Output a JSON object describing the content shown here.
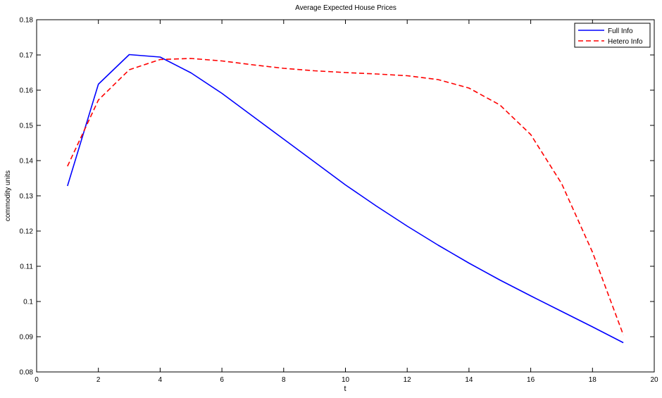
{
  "chart_data": {
    "type": "line",
    "title": "Average Expected House Prices",
    "xlabel": "t",
    "ylabel": "commodity units",
    "xlim": [
      0,
      20
    ],
    "ylim": [
      0.08,
      0.18
    ],
    "xticks": [
      0,
      2,
      4,
      6,
      8,
      10,
      12,
      14,
      16,
      18,
      20
    ],
    "yticks": [
      0.08,
      0.09,
      0.1,
      0.11,
      0.12,
      0.13,
      0.14,
      0.15,
      0.16,
      0.17,
      0.18
    ],
    "grid": false,
    "legend_position": "top-right",
    "series": [
      {
        "name": "Full Info",
        "color": "#0000ff",
        "line_style": "solid",
        "x": [
          1,
          2,
          3,
          4,
          5,
          6,
          7,
          8,
          9,
          10,
          11,
          12,
          13,
          14,
          15,
          16,
          17,
          18,
          19
        ],
        "values": [
          0.1328,
          0.1617,
          0.1701,
          0.1694,
          0.1649,
          0.1591,
          0.1526,
          0.1461,
          0.1396,
          0.1331,
          0.1271,
          0.1214,
          0.116,
          0.1109,
          0.1061,
          0.1016,
          0.0972,
          0.0928,
          0.0883
        ]
      },
      {
        "name": "Hetero Info",
        "color": "#ff0000",
        "line_style": "dashed",
        "x": [
          1,
          2,
          3,
          4,
          5,
          6,
          7,
          8,
          9,
          10,
          11,
          12,
          13,
          14,
          15,
          16,
          17,
          18,
          19
        ],
        "values": [
          0.1384,
          0.1572,
          0.1658,
          0.1687,
          0.169,
          0.1683,
          0.1672,
          0.1662,
          0.1655,
          0.165,
          0.1646,
          0.1641,
          0.163,
          0.1606,
          0.1558,
          0.1474,
          0.1335,
          0.114,
          0.0905
        ]
      }
    ]
  }
}
